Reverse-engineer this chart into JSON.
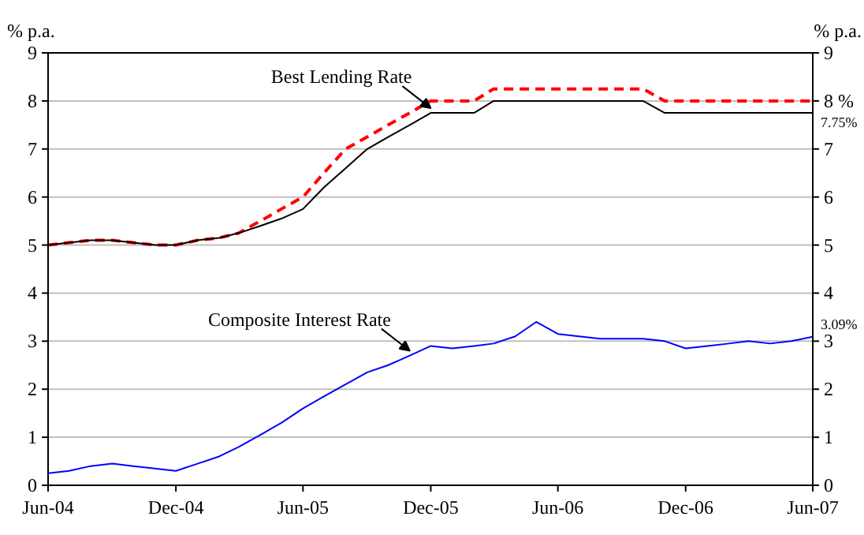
{
  "chart_data": {
    "type": "line",
    "ylabel": "% p.a.",
    "y2label": "% p.a.",
    "x": [
      "2004-06",
      "2004-07",
      "2004-08",
      "2004-09",
      "2004-10",
      "2004-11",
      "2004-12",
      "2005-01",
      "2005-02",
      "2005-03",
      "2005-04",
      "2005-05",
      "2005-06",
      "2005-07",
      "2005-08",
      "2005-09",
      "2005-10",
      "2005-11",
      "2005-12",
      "2006-01",
      "2006-02",
      "2006-03",
      "2006-04",
      "2006-05",
      "2006-06",
      "2006-07",
      "2006-08",
      "2006-09",
      "2006-10",
      "2006-11",
      "2006-12",
      "2007-01",
      "2007-02",
      "2007-03",
      "2007-04",
      "2007-05",
      "2007-06"
    ],
    "series": [
      {
        "color": "#ff0000",
        "line_style": "dashed",
        "values": [
          5.0,
          5.05,
          5.1,
          5.1,
          5.05,
          5.0,
          5.0,
          5.1,
          5.15,
          5.25,
          5.5,
          5.75,
          6.0,
          6.5,
          7.0,
          7.25,
          7.5,
          7.75,
          8.0,
          8.0,
          8.0,
          8.25,
          8.25,
          8.25,
          8.25,
          8.25,
          8.25,
          8.25,
          8.25,
          8.0,
          8.0,
          8.0,
          8.0,
          8.0,
          8.0,
          8.0,
          8.0
        ]
      },
      {
        "color": "#000000",
        "line_style": "solid",
        "values": [
          5.0,
          5.05,
          5.1,
          5.1,
          5.05,
          5.0,
          5.0,
          5.1,
          5.15,
          5.25,
          5.4,
          5.55,
          5.75,
          6.2,
          6.6,
          7.0,
          7.25,
          7.5,
          7.75,
          7.75,
          7.75,
          8.0,
          8.0,
          8.0,
          8.0,
          8.0,
          8.0,
          8.0,
          8.0,
          7.75,
          7.75,
          7.75,
          7.75,
          7.75,
          7.75,
          7.75,
          7.75
        ]
      },
      {
        "color": "#0000ff",
        "line_style": "solid",
        "values": [
          0.25,
          0.3,
          0.4,
          0.45,
          0.4,
          0.35,
          0.3,
          0.45,
          0.6,
          0.8,
          1.05,
          1.3,
          1.6,
          1.85,
          2.1,
          2.35,
          2.5,
          2.7,
          2.9,
          2.85,
          2.9,
          2.95,
          3.1,
          3.4,
          3.15,
          3.1,
          3.05,
          3.05,
          3.05,
          3.0,
          2.85,
          2.9,
          2.95,
          3.0,
          2.95,
          3.0,
          3.09
        ]
      }
    ],
    "xlim": [
      "2004-06",
      "2007-06"
    ],
    "xticks": [
      {
        "value": "2004-06",
        "label": "Jun-04"
      },
      {
        "value": "2004-12",
        "label": "Dec-04"
      },
      {
        "value": "2005-06",
        "label": "Jun-05"
      },
      {
        "value": "2005-12",
        "label": "Dec-05"
      },
      {
        "value": "2006-06",
        "label": "Jun-06"
      },
      {
        "value": "2006-12",
        "label": "Dec-06"
      },
      {
        "value": "2007-06",
        "label": "Jun-07"
      }
    ],
    "ylim": [
      0,
      9
    ],
    "yticks": [
      0,
      1,
      2,
      3,
      4,
      5,
      6,
      7,
      8,
      9
    ],
    "y2lim": [
      0,
      9
    ],
    "y2ticks": [
      0,
      1,
      2,
      3,
      4,
      5,
      6,
      7,
      {
        "value": 8,
        "label": "8 %"
      },
      9
    ],
    "annotations": [
      {
        "text": "Best Lending Rate",
        "x": "2005-12",
        "y": 7.75
      },
      {
        "text": "Composite Interest Rate",
        "x": "2005-11",
        "y": 2.7
      },
      {
        "text": "7.75%",
        "x": "2007-06",
        "y": 7.75
      },
      {
        "text": "3.09%",
        "x": "2007-06",
        "y": 3.09
      }
    ],
    "grid": "y",
    "marker": "none"
  }
}
